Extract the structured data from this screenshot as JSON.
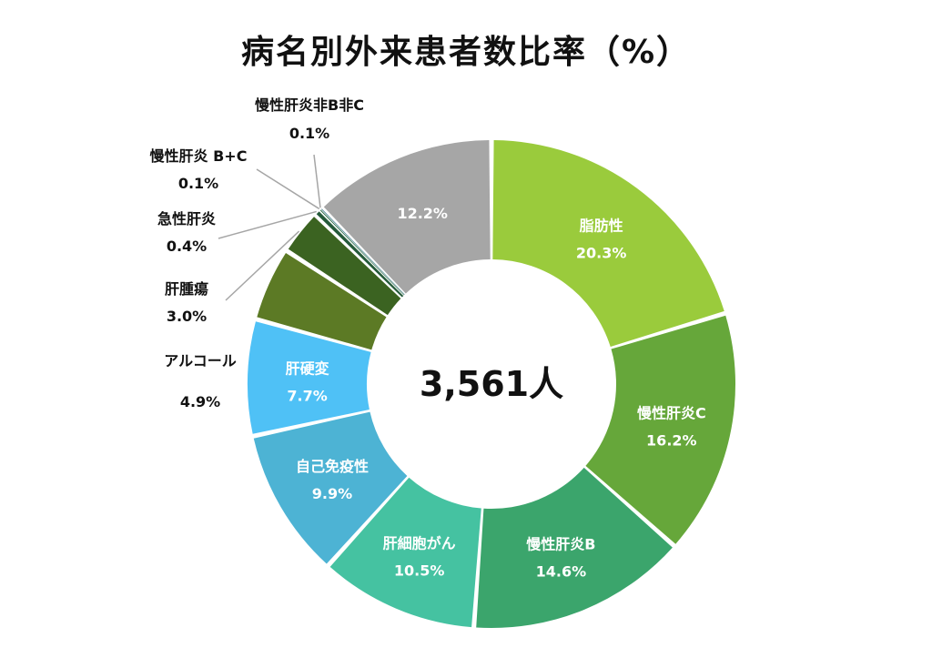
{
  "chart_data": {
    "type": "pie",
    "subtype": "donut",
    "title": "病名別外来患者数比率（%）",
    "center_label": "3,561人",
    "slices": [
      {
        "name": "脂肪性",
        "value": 20.3,
        "label": "20.3%",
        "color": "#9ACB3C",
        "placement": "inside"
      },
      {
        "name": "慢性肝炎C",
        "value": 16.2,
        "label": "16.2%",
        "color": "#66A73A",
        "placement": "inside"
      },
      {
        "name": "慢性肝炎B",
        "value": 14.6,
        "label": "14.6%",
        "color": "#3BA56C",
        "placement": "inside"
      },
      {
        "name": "肝細胞がん",
        "value": 10.5,
        "label": "10.5%",
        "color": "#45C2A1",
        "placement": "inside"
      },
      {
        "name": "自己免疫性",
        "value": 9.9,
        "label": "9.9%",
        "color": "#4DB3D4",
        "placement": "inside"
      },
      {
        "name": "肝硬変",
        "value": 7.7,
        "label": "7.7%",
        "color": "#4FC1F6",
        "placement": "inside"
      },
      {
        "name": "アルコール",
        "value": 4.9,
        "label": "4.9%",
        "color": "#5C7A25",
        "placement": "outside"
      },
      {
        "name": "肝腫瘍",
        "value": 3.0,
        "label": "3.0%",
        "color": "#3B6321",
        "placement": "outside"
      },
      {
        "name": "急性肝炎",
        "value": 0.4,
        "label": "0.4%",
        "color": "#255A3A",
        "placement": "outside"
      },
      {
        "name": "慢性肝炎 B+C",
        "value": 0.1,
        "label": "0.1%",
        "color": "#2D6E4B",
        "placement": "outside"
      },
      {
        "name": "慢性肝炎非B非C",
        "value": 0.1,
        "label": "0.1%",
        "color": "#5B8E9C",
        "placement": "outside"
      },
      {
        "name": "",
        "value": 12.2,
        "label": "12.2%",
        "color": "#A6A6A6",
        "placement": "inside"
      }
    ]
  }
}
